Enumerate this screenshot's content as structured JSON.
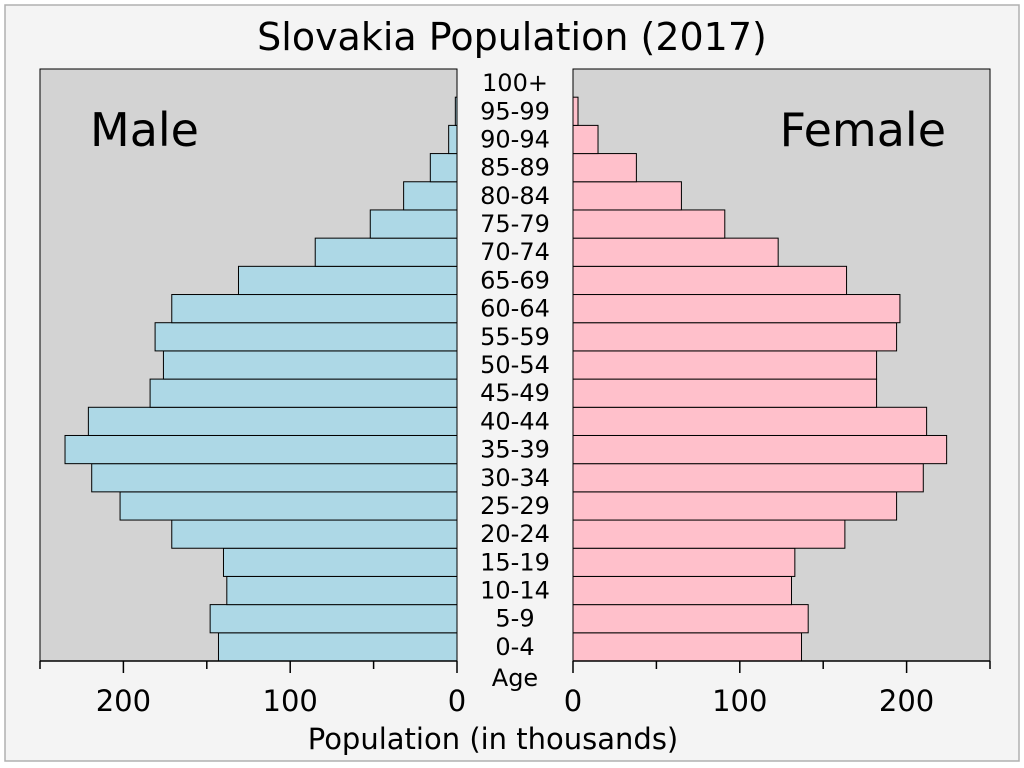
{
  "chart_data": {
    "type": "bar",
    "orientation": "horizontal",
    "layout": "population-pyramid",
    "title": "Slovakia Population (2017)",
    "xlabel": "Population (in thousands)",
    "age_label": "Age",
    "categories": [
      "0-4",
      "5-9",
      "10-14",
      "15-19",
      "20-24",
      "25-29",
      "30-34",
      "35-39",
      "40-44",
      "45-49",
      "50-54",
      "55-59",
      "60-64",
      "65-69",
      "70-74",
      "75-79",
      "80-84",
      "85-89",
      "90-94",
      "95-99",
      "100+"
    ],
    "series": [
      {
        "name": "Male",
        "color": "#add8e6",
        "values": [
          143,
          148,
          138,
          140,
          171,
          202,
          219,
          235,
          221,
          184,
          176,
          181,
          171,
          131,
          85,
          52,
          32,
          16,
          5,
          1,
          0
        ]
      },
      {
        "name": "Female",
        "color": "#ffc0cb",
        "values": [
          137,
          141,
          131,
          133,
          163,
          194,
          210,
          224,
          212,
          182,
          182,
          194,
          196,
          164,
          123,
          91,
          65,
          38,
          15,
          3,
          0
        ]
      }
    ],
    "xlim": [
      0,
      250
    ],
    "xticks": [
      0,
      100,
      200
    ],
    "xtick_labels": [
      "0",
      "100",
      "200"
    ],
    "panel_background": "#d3d3d3",
    "figure_background": "#f4f4f4",
    "grid": false
  }
}
